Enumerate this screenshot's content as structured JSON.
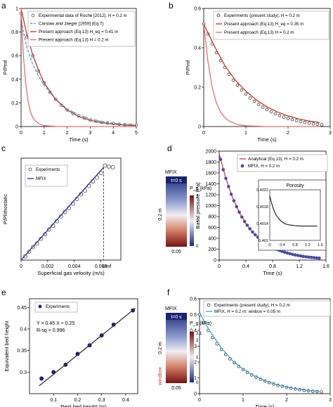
{
  "chart_data": [
    {
      "panel": "a",
      "type": "line",
      "xlabel": "Time (s)",
      "ylabel": "P/Pmf",
      "xlim": [
        0,
        5
      ],
      "ylim": [
        0,
        1
      ],
      "xticks": [
        "0",
        "1",
        "2",
        "3",
        "4",
        "5"
      ],
      "yticks": [
        "0",
        "0.2",
        "0.4",
        "0.6",
        "0.8",
        "1"
      ],
      "legend": [
        "Experimental data of Roche [2012], H = 0.2 m",
        "Carslaw and Jaeger [1959] (Eq.7)",
        "Present approach (Eq.13) H_eq = 0.41 m",
        "Present approach (Eq.13) H = 0.2 m"
      ],
      "series": [
        {
          "name": "Experimental data of Roche [2012], H = 0.2 m",
          "kind": "markers",
          "color": "#555555",
          "x": [
            0,
            0.25,
            0.5,
            0.75,
            1,
            1.25,
            1.5,
            1.75,
            2,
            2.25,
            2.5,
            2.75,
            3,
            3.25,
            3.5,
            3.75,
            4,
            4.25,
            4.5,
            4.75,
            5
          ],
          "y": [
            0.96,
            0.76,
            0.6,
            0.47,
            0.37,
            0.29,
            0.23,
            0.18,
            0.14,
            0.11,
            0.09,
            0.07,
            0.055,
            0.045,
            0.035,
            0.03,
            0.025,
            0.02,
            0.015,
            0.012,
            0.01
          ]
        },
        {
          "name": "Carslaw and Jaeger [1959] (Eq.7)",
          "kind": "dashed",
          "color": "#3fa8d8",
          "x": [
            0,
            0.1,
            0.25,
            0.5,
            0.75,
            1,
            1.5,
            2,
            2.5,
            3,
            3.5,
            4,
            4.5,
            5
          ],
          "y": [
            0.93,
            0.8,
            0.67,
            0.53,
            0.43,
            0.35,
            0.23,
            0.15,
            0.1,
            0.065,
            0.042,
            0.028,
            0.018,
            0.012
          ]
        },
        {
          "name": "Present approach (Eq.13) H_eq = 0.41 m",
          "kind": "line",
          "color": "#c0392b",
          "x": [
            0,
            0.25,
            0.5,
            0.75,
            1,
            1.5,
            2,
            2.5,
            3,
            3.5,
            4,
            4.5,
            5
          ],
          "y": [
            1.0,
            0.78,
            0.61,
            0.48,
            0.37,
            0.23,
            0.14,
            0.086,
            0.053,
            0.032,
            0.02,
            0.012,
            0.008
          ]
        },
        {
          "name": "Present approach (Eq.13) H = 0.2 m",
          "kind": "line",
          "color": "#e87070",
          "x": [
            0,
            0.1,
            0.2,
            0.3,
            0.4,
            0.5,
            0.6,
            0.8,
            1,
            1.5,
            2,
            5
          ],
          "y": [
            1.0,
            0.6,
            0.37,
            0.22,
            0.13,
            0.08,
            0.05,
            0.02,
            0.008,
            0.001,
            0,
            0
          ]
        }
      ]
    },
    {
      "panel": "b",
      "type": "line",
      "xlabel": "Time (s)",
      "ylabel": "P/Pmf",
      "xlim": [
        0,
        3
      ],
      "ylim": [
        0,
        0.6
      ],
      "xticks": [
        "0",
        "1",
        "2",
        "3"
      ],
      "yticks": [
        "0",
        "0.2",
        "0.4",
        "0.6"
      ],
      "legend": [
        "Experiments (present study), H = 0.2 m",
        "Present approach (Eq.13) H_eq = 0.35 m",
        "Present approach (Eq.13) H = 0.2 m"
      ],
      "series": [
        {
          "name": "Experiments (present study), H = 0.2 m",
          "kind": "markers",
          "color": "#444444",
          "x": [
            0,
            0.1,
            0.2,
            0.3,
            0.4,
            0.5,
            0.6,
            0.7,
            0.8,
            0.9,
            1,
            1.1,
            1.2,
            1.3,
            1.4,
            1.5,
            1.6,
            1.7,
            1.8,
            1.9,
            2,
            2.1,
            2.2,
            2.3,
            2.4,
            2.5,
            2.6,
            2.7,
            2.8
          ],
          "y": [
            0.52,
            0.47,
            0.42,
            0.375,
            0.335,
            0.3,
            0.265,
            0.235,
            0.21,
            0.185,
            0.165,
            0.145,
            0.128,
            0.112,
            0.098,
            0.086,
            0.075,
            0.065,
            0.056,
            0.048,
            0.041,
            0.035,
            0.03,
            0.025,
            0.021,
            0.017,
            0.014,
            0.011,
            0.009
          ]
        },
        {
          "name": "Present approach (Eq.13) H_eq = 0.35 m",
          "kind": "line",
          "color": "#c0392b",
          "x": [
            0,
            0.25,
            0.5,
            0.75,
            1,
            1.25,
            1.5,
            1.75,
            2,
            2.25,
            2.5,
            2.75
          ],
          "y": [
            0.52,
            0.41,
            0.31,
            0.235,
            0.18,
            0.135,
            0.1,
            0.074,
            0.054,
            0.039,
            0.028,
            0.02
          ]
        },
        {
          "name": "Present approach (Eq.13) H = 0.2 m",
          "kind": "line",
          "color": "#e87070",
          "x": [
            0,
            0.1,
            0.2,
            0.3,
            0.4,
            0.5,
            0.6,
            0.8,
            1,
            1.5,
            2.75
          ],
          "y": [
            0.52,
            0.33,
            0.2,
            0.12,
            0.075,
            0.045,
            0.028,
            0.01,
            0.004,
            0,
            0
          ]
        }
      ]
    },
    {
      "panel": "c",
      "type": "scatter",
      "xlabel": "Superficial gas velocity (m/s)",
      "ylabel": "P/Plithostatic",
      "xlim": [
        0,
        0.0075
      ],
      "ylim": [
        0,
        1.1
      ],
      "xticks": [
        "0",
        "0.002",
        "0.004",
        "0.006"
      ],
      "legend": [
        "Experiments",
        "MFIX"
      ],
      "annotation": "Umf",
      "umf": 0.0062,
      "series": [
        {
          "name": "Experiments",
          "kind": "markers",
          "color": "#555555",
          "x": [
            0.0003,
            0.0006,
            0.0009,
            0.0012,
            0.0015,
            0.0018,
            0.0021,
            0.0024,
            0.0027,
            0.003,
            0.0033,
            0.0036,
            0.0039,
            0.0042,
            0.0045,
            0.0048,
            0.0051,
            0.0054,
            0.0057,
            0.006,
            0.0063,
            0.0066,
            0.0069
          ],
          "y": [
            0.04,
            0.09,
            0.14,
            0.18,
            0.23,
            0.28,
            0.33,
            0.37,
            0.42,
            0.47,
            0.52,
            0.56,
            0.61,
            0.66,
            0.71,
            0.75,
            0.8,
            0.85,
            0.89,
            0.94,
            1.02,
            1.01,
            1.0
          ]
        },
        {
          "name": "MFIX",
          "kind": "line",
          "color": "#2b2b8c",
          "x": [
            0,
            0.0062
          ],
          "y": [
            0,
            1.0
          ]
        }
      ]
    },
    {
      "panel": "d",
      "type": "line",
      "xlabel": "Time (s)",
      "ylabel": "Basal pressure (Pa)",
      "xlim": [
        0,
        1.6
      ],
      "ylim": [
        0,
        2000
      ],
      "xticks": [
        "0",
        "0.4",
        "0.8",
        "1.2",
        "1.6"
      ],
      "yticks": [
        "0",
        "200",
        "400",
        "600",
        "800",
        "1000",
        "1200",
        "1400",
        "1600",
        "1800",
        "2000"
      ],
      "legend": [
        "Analytical (Eq.13), H = 0.2 m",
        "MFIX, H = 0.2 m"
      ],
      "series": [
        {
          "name": "Analytical (Eq.13), H = 0.2 m",
          "kind": "line",
          "color": "#d04040",
          "x": [
            0,
            0.1,
            0.2,
            0.3,
            0.4,
            0.5,
            0.6,
            0.7,
            0.8,
            0.9,
            1.0,
            1.2,
            1.4,
            1.5
          ],
          "y": [
            1950,
            1500,
            1150,
            880,
            670,
            510,
            390,
            300,
            230,
            175,
            135,
            80,
            45,
            35
          ]
        },
        {
          "name": "MFIX, H = 0.2 m",
          "kind": "markers",
          "color": "#4a4aa8",
          "x": [
            0.02,
            0.06,
            0.1,
            0.14,
            0.18,
            0.22,
            0.26,
            0.3,
            0.34,
            0.38,
            0.42,
            0.46,
            0.5,
            0.54,
            0.58,
            0.62,
            0.66,
            0.7,
            0.74,
            0.78,
            0.82,
            0.86,
            0.9,
            0.94,
            0.98,
            1.02,
            1.06,
            1.1,
            1.14,
            1.18,
            1.22,
            1.26,
            1.3,
            1.34,
            1.38,
            1.42,
            1.46,
            1.5
          ],
          "y": [
            1850,
            1660,
            1500,
            1350,
            1210,
            1090,
            980,
            880,
            790,
            710,
            640,
            575,
            515,
            465,
            418,
            375,
            338,
            303,
            273,
            245,
            220,
            198,
            178,
            160,
            144,
            130,
            117,
            105,
            94,
            85,
            76,
            68,
            61,
            55,
            50,
            45,
            40,
            36
          ]
        }
      ],
      "inset": {
        "title": "Porosity",
        "xticks": [
          "0",
          "0.4",
          "0.8",
          "1.2",
          "1.6"
        ],
        "yticks": [
          "0.401",
          "0.4014",
          "0.4018",
          "0.4022"
        ],
        "xlim": [
          0,
          1.6
        ],
        "ylim": [
          0.401,
          0.4022
        ],
        "x": [
          0,
          0.05,
          0.1,
          0.15,
          0.2,
          0.3,
          0.4,
          0.5,
          0.6,
          0.8,
          1.0,
          1.2,
          1.5
        ],
        "y": [
          0.40205,
          0.4019,
          0.40178,
          0.40168,
          0.4016,
          0.4015,
          0.40143,
          0.40139,
          0.40137,
          0.40135,
          0.40134,
          0.40134,
          0.40134
        ]
      }
    },
    {
      "panel": "e",
      "type": "scatter",
      "xlabel": "Real bed height (m)",
      "ylabel": "Equivalent bed height",
      "xlim": [
        0,
        0.45
      ],
      "ylim": [
        0.25,
        0.47
      ],
      "xticks": [
        "0.1",
        "0.2",
        "0.3",
        "0.4"
      ],
      "yticks": [
        "0.3",
        "0.35",
        "0.4",
        "0.45"
      ],
      "legend": [
        "Experiments"
      ],
      "annotations": [
        "Y = 0.45 X + 0.25",
        "R-sq = 0.996"
      ],
      "series": [
        {
          "name": "Experiments",
          "kind": "markers",
          "color": "#1f1f7a",
          "x": [
            0.05,
            0.1,
            0.15,
            0.2,
            0.25,
            0.3,
            0.35,
            0.43
          ],
          "y": [
            0.285,
            0.3,
            0.317,
            0.342,
            0.362,
            0.385,
            0.41,
            0.443
          ]
        },
        {
          "name": "",
          "kind": "line",
          "color": "#333333",
          "x": [
            0.04,
            0.44
          ],
          "y": [
            0.268,
            0.448
          ]
        }
      ]
    },
    {
      "panel": "f",
      "type": "line",
      "xlabel": "Time (s)",
      "ylabel": "P/Pmf",
      "xlim": [
        0,
        3
      ],
      "ylim": [
        0,
        0.6
      ],
      "xticks": [
        "0",
        "1",
        "2",
        "3"
      ],
      "yticks": [
        "0",
        "0.1",
        "0.2",
        "0.3",
        "0.4",
        "0.5",
        "0.6"
      ],
      "legend": [
        "Experiments (present study), H = 0.2 m",
        "MFIX, H = 0.2 m; winbox = 0.05 m"
      ],
      "series": [
        {
          "name": "Experiments (present study), H = 0.2 m",
          "kind": "markers",
          "color": "#333333",
          "x": [
            0,
            0.1,
            0.2,
            0.3,
            0.4,
            0.5,
            0.6,
            0.7,
            0.8,
            0.9,
            1,
            1.1,
            1.2,
            1.3,
            1.4,
            1.5,
            1.6,
            1.7,
            1.8,
            1.9,
            2,
            2.1,
            2.2,
            2.3,
            2.4,
            2.5,
            2.6,
            2.7,
            2.8
          ],
          "y": [
            0.5,
            0.45,
            0.4,
            0.355,
            0.315,
            0.28,
            0.248,
            0.22,
            0.195,
            0.172,
            0.152,
            0.134,
            0.118,
            0.104,
            0.091,
            0.08,
            0.07,
            0.061,
            0.053,
            0.046,
            0.04,
            0.034,
            0.029,
            0.025,
            0.021,
            0.018,
            0.015,
            0.013,
            0.011
          ]
        },
        {
          "name": "MFIX, H = 0.2 m; winbox = 0.05 m",
          "kind": "line",
          "color": "#3fa8d8",
          "x": [
            0,
            0.25,
            0.5,
            0.75,
            1,
            1.25,
            1.5,
            1.75,
            2,
            2.25,
            2.5,
            2.75
          ],
          "y": [
            0.51,
            0.39,
            0.29,
            0.21,
            0.155,
            0.113,
            0.082,
            0.059,
            0.042,
            0.03,
            0.021,
            0.015
          ]
        }
      ]
    }
  ],
  "panel_labels": {
    "a": "a",
    "b": "b",
    "c": "c",
    "d": "d",
    "e": "e",
    "f": "f"
  },
  "sim_d": {
    "title": "MFIX",
    "time": "t=0 s",
    "height": "0.2 m",
    "width": "0.05",
    "cbar_label": "P_g (kPa)",
    "cbar_ticks": [
      "0",
      "1",
      "2"
    ]
  },
  "sim_f": {
    "title": "MFIX",
    "time": "t=0 s",
    "height": "0.2 m",
    "windbox": "windbox",
    "width": "0.05",
    "cbar_label": "P_g (kPa)",
    "cbar_ticks": [
      "0",
      "1",
      "2",
      "2.1"
    ]
  },
  "colors": {
    "accent_red": "#c0392b",
    "accent_blue": "#2b2b8c"
  }
}
